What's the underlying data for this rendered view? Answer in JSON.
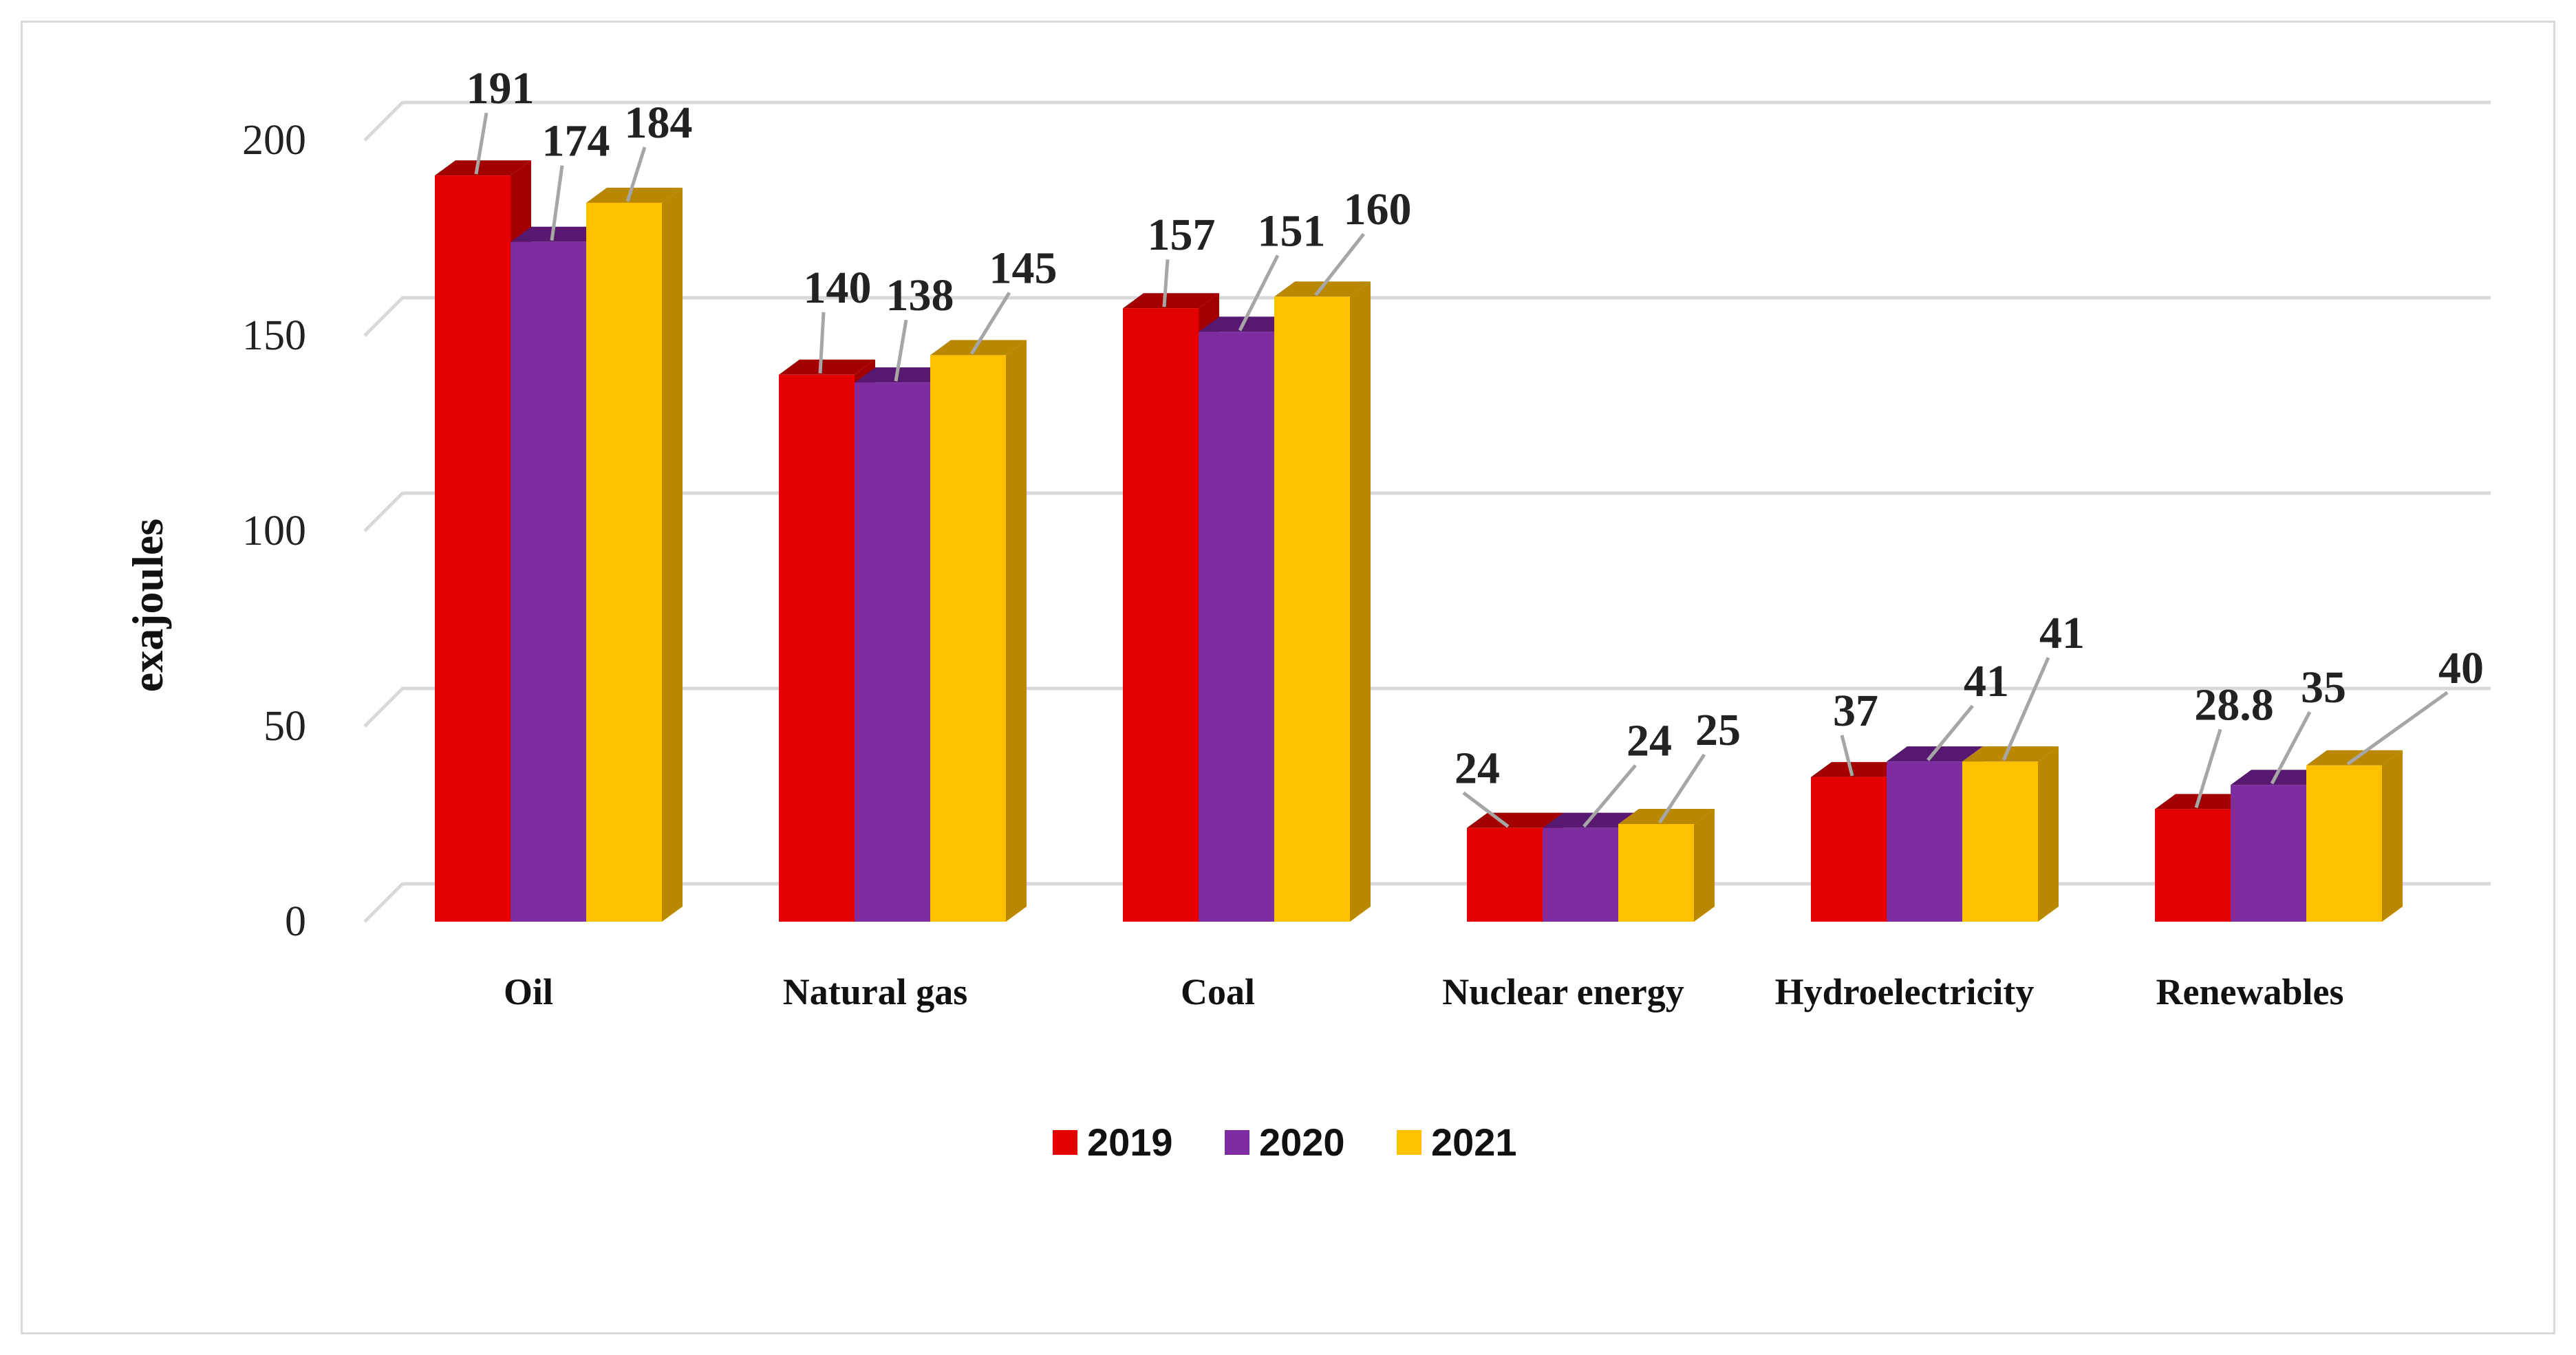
{
  "chart_data": {
    "type": "bar",
    "style": "3d-clustered-column",
    "title": "",
    "xlabel": "",
    "ylabel": "exajoules",
    "ylim": [
      0,
      200
    ],
    "yticks": [
      0,
      50,
      100,
      150,
      200
    ],
    "ytick_labels": [
      "0",
      "50",
      "100",
      "150",
      "200"
    ],
    "grid": true,
    "legend_position": "bottom",
    "categories": [
      "Oil",
      "Natural gas",
      "Coal",
      "Nuclear energy",
      "Hydroelectricity",
      "Renewables"
    ],
    "series": [
      {
        "name": "2019",
        "color": "#e30000",
        "side_color": "#a30000",
        "values": [
          191,
          140,
          157,
          24,
          37,
          28.8
        ],
        "labels": [
          "191",
          "140",
          "157",
          "24",
          "37",
          "28.8"
        ]
      },
      {
        "name": "2020",
        "color": "#7e2ca2",
        "side_color": "#57186f",
        "values": [
          174,
          138,
          151,
          24,
          41,
          35
        ],
        "labels": [
          "174",
          "138",
          "151",
          "24",
          "41",
          "35"
        ]
      },
      {
        "name": "2021",
        "color": "#ffc000",
        "side_color": "#b98700",
        "values": [
          184,
          145,
          160,
          25,
          41,
          40
        ],
        "labels": [
          "184",
          "145",
          "160",
          "25",
          "41",
          "40"
        ]
      }
    ]
  }
}
